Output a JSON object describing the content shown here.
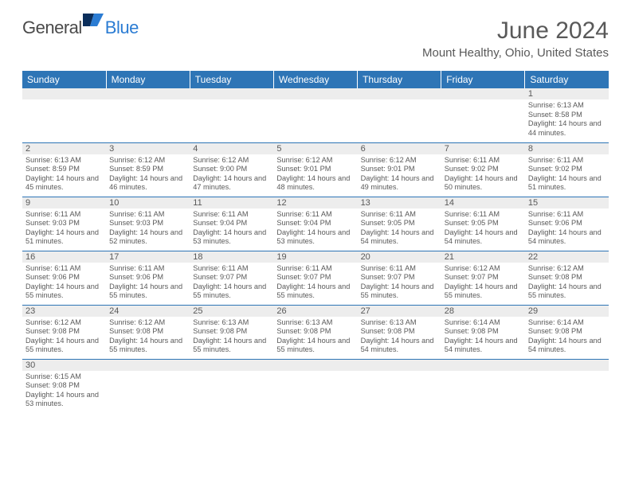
{
  "logo": {
    "text1": "General",
    "text2": "Blue"
  },
  "title": "June 2024",
  "location": "Mount Healthy, Ohio, United States",
  "colors": {
    "header_bg": "#2e75b6",
    "header_text": "#ffffff",
    "daynum_bg": "#ededed",
    "body_text": "#595959",
    "rule": "#2e75b6"
  },
  "dayHeaders": [
    "Sunday",
    "Monday",
    "Tuesday",
    "Wednesday",
    "Thursday",
    "Friday",
    "Saturday"
  ],
  "weeks": [
    [
      null,
      null,
      null,
      null,
      null,
      null,
      {
        "n": "1",
        "sr": "6:13 AM",
        "ss": "8:58 PM",
        "dl": "14 hours and 44 minutes."
      }
    ],
    [
      {
        "n": "2",
        "sr": "6:13 AM",
        "ss": "8:59 PM",
        "dl": "14 hours and 45 minutes."
      },
      {
        "n": "3",
        "sr": "6:12 AM",
        "ss": "8:59 PM",
        "dl": "14 hours and 46 minutes."
      },
      {
        "n": "4",
        "sr": "6:12 AM",
        "ss": "9:00 PM",
        "dl": "14 hours and 47 minutes."
      },
      {
        "n": "5",
        "sr": "6:12 AM",
        "ss": "9:01 PM",
        "dl": "14 hours and 48 minutes."
      },
      {
        "n": "6",
        "sr": "6:12 AM",
        "ss": "9:01 PM",
        "dl": "14 hours and 49 minutes."
      },
      {
        "n": "7",
        "sr": "6:11 AM",
        "ss": "9:02 PM",
        "dl": "14 hours and 50 minutes."
      },
      {
        "n": "8",
        "sr": "6:11 AM",
        "ss": "9:02 PM",
        "dl": "14 hours and 51 minutes."
      }
    ],
    [
      {
        "n": "9",
        "sr": "6:11 AM",
        "ss": "9:03 PM",
        "dl": "14 hours and 51 minutes."
      },
      {
        "n": "10",
        "sr": "6:11 AM",
        "ss": "9:03 PM",
        "dl": "14 hours and 52 minutes."
      },
      {
        "n": "11",
        "sr": "6:11 AM",
        "ss": "9:04 PM",
        "dl": "14 hours and 53 minutes."
      },
      {
        "n": "12",
        "sr": "6:11 AM",
        "ss": "9:04 PM",
        "dl": "14 hours and 53 minutes."
      },
      {
        "n": "13",
        "sr": "6:11 AM",
        "ss": "9:05 PM",
        "dl": "14 hours and 54 minutes."
      },
      {
        "n": "14",
        "sr": "6:11 AM",
        "ss": "9:05 PM",
        "dl": "14 hours and 54 minutes."
      },
      {
        "n": "15",
        "sr": "6:11 AM",
        "ss": "9:06 PM",
        "dl": "14 hours and 54 minutes."
      }
    ],
    [
      {
        "n": "16",
        "sr": "6:11 AM",
        "ss": "9:06 PM",
        "dl": "14 hours and 55 minutes."
      },
      {
        "n": "17",
        "sr": "6:11 AM",
        "ss": "9:06 PM",
        "dl": "14 hours and 55 minutes."
      },
      {
        "n": "18",
        "sr": "6:11 AM",
        "ss": "9:07 PM",
        "dl": "14 hours and 55 minutes."
      },
      {
        "n": "19",
        "sr": "6:11 AM",
        "ss": "9:07 PM",
        "dl": "14 hours and 55 minutes."
      },
      {
        "n": "20",
        "sr": "6:11 AM",
        "ss": "9:07 PM",
        "dl": "14 hours and 55 minutes."
      },
      {
        "n": "21",
        "sr": "6:12 AM",
        "ss": "9:07 PM",
        "dl": "14 hours and 55 minutes."
      },
      {
        "n": "22",
        "sr": "6:12 AM",
        "ss": "9:08 PM",
        "dl": "14 hours and 55 minutes."
      }
    ],
    [
      {
        "n": "23",
        "sr": "6:12 AM",
        "ss": "9:08 PM",
        "dl": "14 hours and 55 minutes."
      },
      {
        "n": "24",
        "sr": "6:12 AM",
        "ss": "9:08 PM",
        "dl": "14 hours and 55 minutes."
      },
      {
        "n": "25",
        "sr": "6:13 AM",
        "ss": "9:08 PM",
        "dl": "14 hours and 55 minutes."
      },
      {
        "n": "26",
        "sr": "6:13 AM",
        "ss": "9:08 PM",
        "dl": "14 hours and 55 minutes."
      },
      {
        "n": "27",
        "sr": "6:13 AM",
        "ss": "9:08 PM",
        "dl": "14 hours and 54 minutes."
      },
      {
        "n": "28",
        "sr": "6:14 AM",
        "ss": "9:08 PM",
        "dl": "14 hours and 54 minutes."
      },
      {
        "n": "29",
        "sr": "6:14 AM",
        "ss": "9:08 PM",
        "dl": "14 hours and 54 minutes."
      }
    ],
    [
      {
        "n": "30",
        "sr": "6:15 AM",
        "ss": "9:08 PM",
        "dl": "14 hours and 53 minutes."
      },
      null,
      null,
      null,
      null,
      null,
      null
    ]
  ],
  "labels": {
    "sunrise": "Sunrise: ",
    "sunset": "Sunset: ",
    "daylight": "Daylight: "
  }
}
